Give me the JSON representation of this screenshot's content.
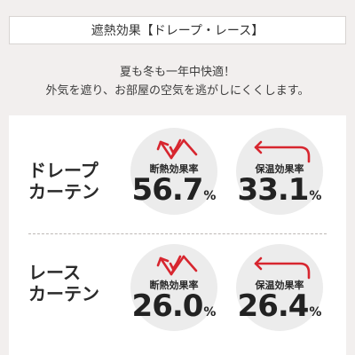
{
  "header": {
    "title": "遮熱効果【ドレープ・レース】"
  },
  "tagline": {
    "line1": "夏も冬も一年中快適！",
    "line2": "外気を遮り、お部屋の空気を逃がしにくくします。"
  },
  "rows": [
    {
      "label_line1": "ドレープ",
      "label_line2": "カーテン",
      "metrics": [
        {
          "label": "断熱効果率",
          "value": "56.7",
          "unit": "%",
          "icon": "heat-shield-arrows-icon"
        },
        {
          "label": "保温効果率",
          "value": "33.1",
          "unit": "%",
          "icon": "heat-retention-arrow-icon"
        }
      ]
    },
    {
      "label_line1": "レース",
      "label_line2": "カーテン",
      "metrics": [
        {
          "label": "断熱効果率",
          "value": "26.0",
          "unit": "%",
          "icon": "heat-shield-arrows-icon"
        },
        {
          "label": "保温効果率",
          "value": "26.4",
          "unit": "%",
          "icon": "heat-retention-arrow-icon"
        }
      ]
    }
  ],
  "colors": {
    "accent_red": "#d7262f",
    "background": "#f2efee",
    "circle": "#ececec",
    "panel": "#ffffff"
  }
}
